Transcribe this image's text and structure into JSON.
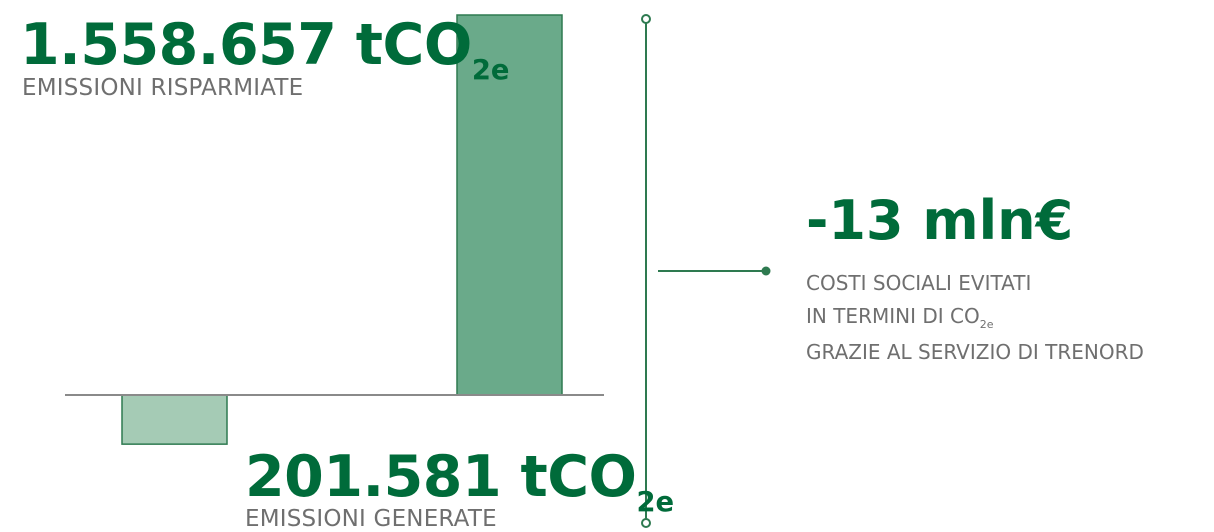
{
  "colors": {
    "accent": "#006b3a",
    "bar_positive": "#6aaa8a",
    "bar_negative": "#a5cbb5",
    "bar_stroke": "#2e7a50",
    "axis": "#8a8a8a",
    "caption": "#6f6f6f"
  },
  "chart_data": {
    "type": "bar",
    "categories": [
      "EMISSIONI GENERATE",
      "EMISSIONI RISPARMIATE"
    ],
    "values": [
      -201581,
      1558657
    ],
    "ylim": [
      -201581,
      1558657
    ],
    "grid": false,
    "legend": "none"
  },
  "labels": {
    "saved": {
      "value_main": "1.558.657 tCO",
      "value_sub": "2e",
      "caption": "EMISSIONI RISPARMIATE"
    },
    "generated": {
      "value_main": "201.581 tCO",
      "value_sub": "2e",
      "caption": "EMISSIONI GENERATE"
    },
    "cost": {
      "value": "-13 mln€",
      "line1": "COSTI SOCIALI EVITATI",
      "line2_main": "IN TERMINI DI CO",
      "line2_sub": "2e",
      "line3": "GRAZIE AL SERVIZIO DI TRENORD"
    }
  }
}
